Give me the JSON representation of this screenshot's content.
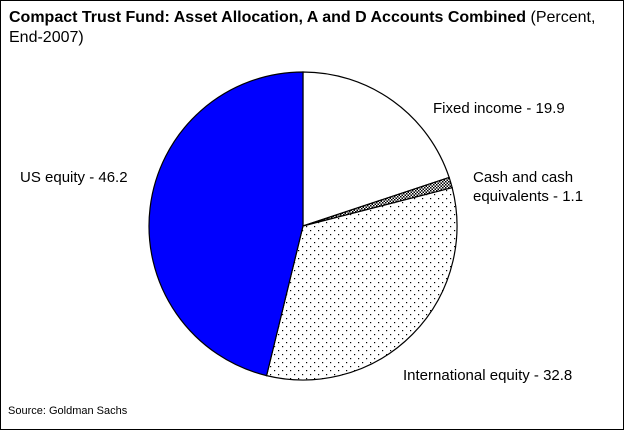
{
  "chart_data": {
    "type": "pie",
    "title": "Compact Trust Fund: Asset Allocation, A and D Accounts Combined",
    "subtitle": "(Percent, End-2007)",
    "values": [
      19.9,
      1.1,
      32.8,
      46.2
    ],
    "value_labels": [
      "Fixed income - 19.9",
      "Cash and cash equivalents - 1.1",
      "International equity - 32.8",
      "US equity - 46.2"
    ],
    "colors": [
      "#ffffff",
      "#000000",
      "#000000",
      "#0000ff"
    ],
    "patterns": [
      null,
      "dense",
      "sparse",
      null
    ],
    "source": "Source: Goldman Sachs"
  }
}
